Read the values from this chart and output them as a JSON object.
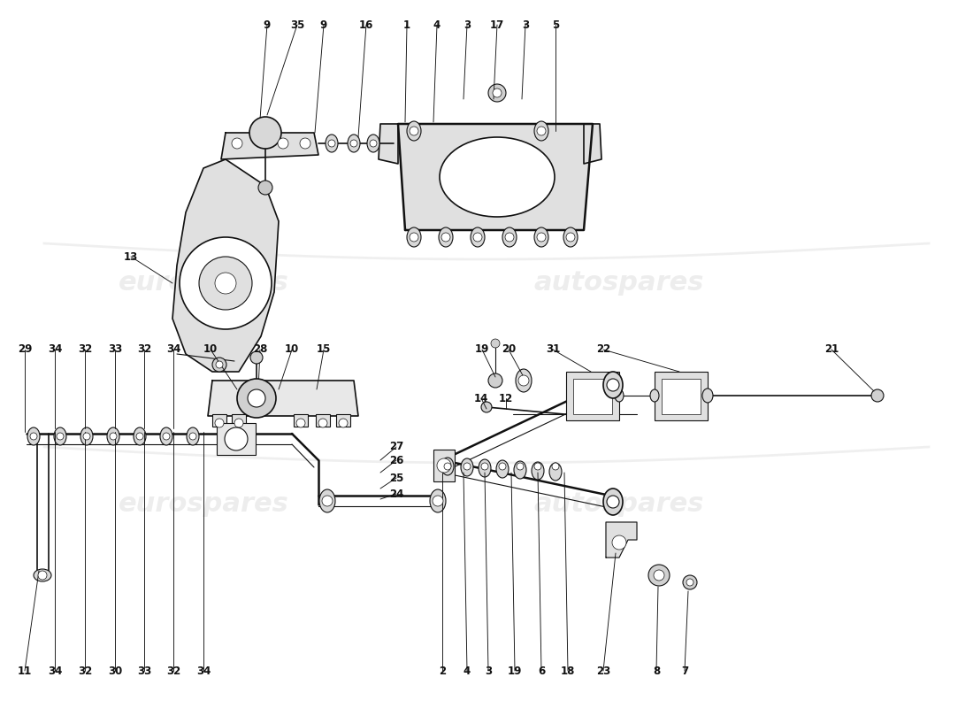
{
  "fig_width": 11.0,
  "fig_height": 8.0,
  "dpi": 100,
  "bg": "#ffffff",
  "lc": "#111111",
  "wc": "#cccccc",
  "wm1": "eurospares",
  "wm2": "autospares",
  "wm_fs": 22,
  "wm_alpha": 0.35,
  "lw_hair": 0.5,
  "lw_thin": 0.8,
  "lw_med": 1.2,
  "lw_thick": 1.8,
  "label_fs": 8.5
}
